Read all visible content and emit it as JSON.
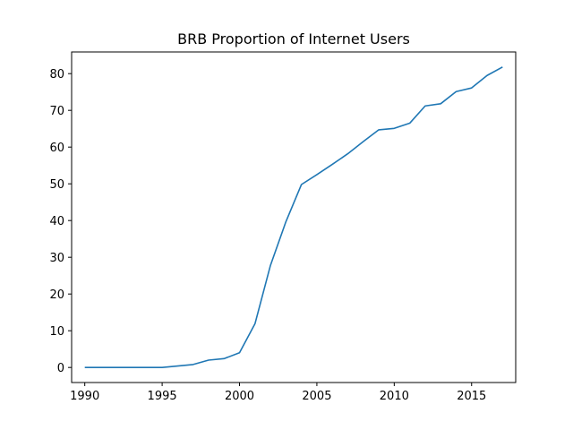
{
  "chart_data": {
    "type": "line",
    "title": "BRB Proportion of Internet Users",
    "xlabel": "",
    "ylabel": "",
    "x": [
      1990,
      1991,
      1992,
      1993,
      1994,
      1995,
      1996,
      1997,
      1998,
      1999,
      2000,
      2001,
      2002,
      2003,
      2004,
      2005,
      2006,
      2007,
      2008,
      2009,
      2010,
      2011,
      2012,
      2013,
      2014,
      2015,
      2016,
      2017
    ],
    "series": [
      {
        "values": [
          0,
          0,
          0,
          0,
          0,
          0,
          0.4,
          0.8,
          2.0,
          2.4,
          4.0,
          11.9,
          27.8,
          39.7,
          49.8,
          52.5,
          55.3,
          58.2,
          61.5,
          64.7,
          65.1,
          66.5,
          71.2,
          71.8,
          75.1,
          76.1,
          79.5,
          81.8
        ]
      }
    ],
    "xlim": [
      1989.15,
      2017.85
    ],
    "ylim": [
      -4.1,
      85.9
    ],
    "xticks": [
      1990,
      1995,
      2000,
      2005,
      2010,
      2015
    ],
    "yticks": [
      0,
      10,
      20,
      30,
      40,
      50,
      60,
      70,
      80
    ],
    "grid": false,
    "legend": "none",
    "line_color": "#1f77b4"
  }
}
